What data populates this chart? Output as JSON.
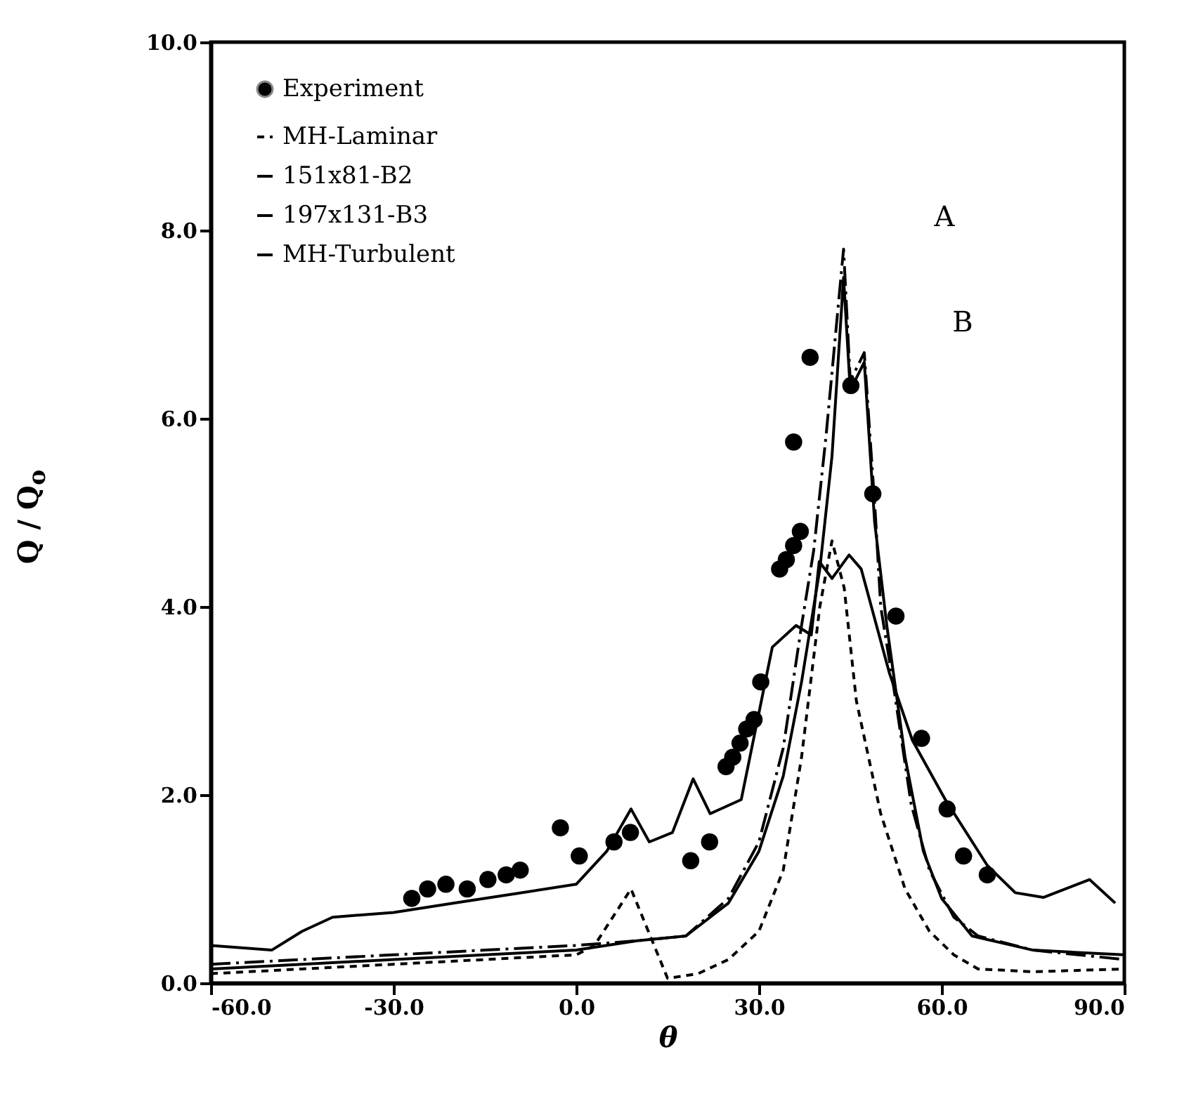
{
  "chart_data": {
    "type": "line",
    "xlabel": "θ",
    "ylabel": "Q / Q$_{o}$",
    "xlim": [
      -60,
      90
    ],
    "ylim": [
      0,
      10
    ],
    "xticks": [
      {
        "value": -60,
        "label": "-60.0"
      },
      {
        "value": -30,
        "label": "-30.0"
      },
      {
        "value": 0,
        "label": "0.0"
      },
      {
        "value": 30,
        "label": "30.0"
      },
      {
        "value": 60,
        "label": "60.0"
      },
      {
        "value": 90,
        "label": "90.0"
      }
    ],
    "yticks": [
      {
        "value": 0,
        "label": "0.0"
      },
      {
        "value": 2,
        "label": "2.0"
      },
      {
        "value": 4,
        "label": "4.0"
      },
      {
        "value": 6,
        "label": "6.0"
      },
      {
        "value": 8,
        "label": "8.0"
      },
      {
        "value": 10,
        "label": "10.0"
      }
    ],
    "grid": false,
    "legend": "top left",
    "annotations": [
      "A",
      "B"
    ],
    "series": [
      {
        "name": "Experiment",
        "type": "scatter",
        "marker": "circle",
        "color": "#000000",
        "x": [
          -27,
          -24.4,
          -21.4,
          -17.9,
          -14.5,
          -11.5,
          -9.2,
          -2.6,
          0.5,
          6.2,
          8.9,
          18.8,
          21.9,
          24.6,
          25.7,
          26.9,
          28.0,
          29.2,
          30.3,
          33.4,
          34.5,
          35.7,
          36.8,
          35.7,
          38.4,
          45.1,
          48.7,
          52.5,
          56.7,
          60.9,
          63.6,
          67.5
        ],
        "values": [
          0.9,
          1.0,
          1.05,
          1.0,
          1.1,
          1.15,
          1.2,
          1.65,
          1.35,
          1.5,
          1.6,
          1.3,
          1.5,
          2.3,
          2.4,
          2.55,
          2.7,
          2.8,
          3.2,
          4.4,
          4.5,
          4.65,
          4.8,
          5.75,
          6.65,
          6.35,
          5.2,
          3.9,
          2.6,
          1.85,
          1.35,
          1.15
        ]
      },
      {
        "name": "MH-Laminar",
        "line_style": "dotted",
        "color": "#000000",
        "x": [
          -60,
          -45,
          -30,
          -15,
          0,
          3,
          9,
          15,
          20,
          25,
          30,
          34,
          37,
          40,
          42,
          44,
          46,
          50,
          54,
          58,
          62,
          66,
          75,
          90
        ],
        "values": [
          0.1,
          0.15,
          0.2,
          0.25,
          0.3,
          0.4,
          1.0,
          0.05,
          0.1,
          0.25,
          0.55,
          1.2,
          2.4,
          4.0,
          4.7,
          4.2,
          3.0,
          1.8,
          1.0,
          0.55,
          0.3,
          0.15,
          0.12,
          0.15
        ]
      },
      {
        "name": "151x81-B2",
        "line_style": "dashed",
        "color": "#000000",
        "x": [
          -60,
          -45,
          -30,
          -15,
          0,
          10,
          18,
          25,
          30,
          34,
          37,
          39,
          41,
          43.9,
          45,
          47.3,
          49.1,
          50,
          52,
          55,
          58,
          62,
          66,
          75,
          90
        ],
        "values": [
          0.2,
          0.25,
          0.3,
          0.35,
          0.4,
          0.45,
          0.5,
          0.9,
          1.5,
          2.5,
          3.8,
          4.6,
          5.8,
          7.8,
          6.4,
          6.7,
          5.0,
          4.0,
          3.2,
          1.9,
          1.2,
          0.7,
          0.5,
          0.35,
          0.25
        ]
      },
      {
        "name": "197x131-B3",
        "line_style": "solid",
        "color": "#000000",
        "x": [
          -60,
          -45,
          -30,
          -15,
          0,
          10,
          18,
          25,
          30,
          34,
          37,
          40,
          42,
          43.9,
          45,
          47.3,
          49,
          51,
          54,
          57,
          60,
          65,
          75,
          90
        ],
        "values": [
          0.15,
          0.2,
          0.25,
          0.3,
          0.35,
          0.45,
          0.5,
          0.85,
          1.4,
          2.2,
          3.2,
          4.4,
          5.6,
          7.5,
          6.3,
          6.6,
          4.9,
          3.8,
          2.4,
          1.4,
          0.9,
          0.5,
          0.35,
          0.3
        ]
      },
      {
        "name": "MH-Turbulent",
        "line_style": "solid",
        "color": "#000000",
        "x": [
          -60,
          -50,
          -45,
          -40,
          -30,
          -20,
          -10,
          0,
          5,
          9,
          12,
          15.8,
          19.2,
          22,
          27.1,
          32.2,
          36.1,
          38.6,
          39.9,
          42,
          44.8,
          46.8,
          51.4,
          55.2,
          60.6,
          67.5,
          72.1,
          76.7,
          84.3,
          88.5
        ],
        "values": [
          0.4,
          0.35,
          0.55,
          0.7,
          0.75,
          0.85,
          0.95,
          1.05,
          1.4,
          1.85,
          1.5,
          1.6,
          2.17,
          1.8,
          1.95,
          3.57,
          3.8,
          3.7,
          4.48,
          4.3,
          4.55,
          4.4,
          3.3,
          2.58,
          1.95,
          1.25,
          0.96,
          0.91,
          1.1,
          0.85
        ]
      }
    ]
  }
}
